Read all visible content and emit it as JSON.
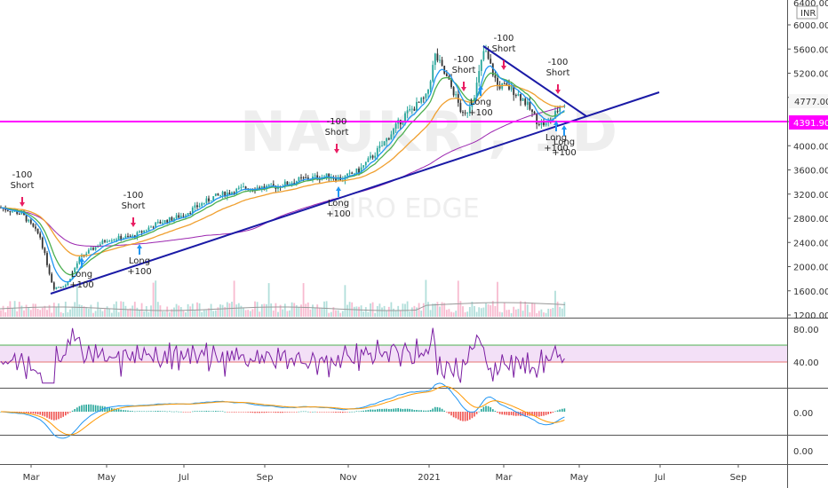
{
  "chart_data": {
    "type": "candlestick",
    "symbol_watermark": "NAUKRI, 1D",
    "watermark_sub": "HIRO EDGE",
    "currency": "INR",
    "price_ticks": [
      1200,
      1600,
      2000,
      2400,
      2800,
      3200,
      3600,
      4000,
      4400,
      4800,
      5200,
      5600,
      6000
    ],
    "price_tick_labels": [
      "1200.00",
      "1600.00",
      "2000.00",
      "2400.00",
      "2800.00",
      "3200.00",
      "3600.00",
      "4000.00",
      "",
      "",
      "5200.00",
      "5600.00",
      "6000.00"
    ],
    "top_label": "6400.00",
    "price_range": [
      1150,
      6450
    ],
    "current_price_label": "4777.00",
    "current_price": 4777,
    "horizontal_level_label": "4391.90",
    "horizontal_level": 4391.9,
    "time_labels": [
      "Mar",
      "May",
      "Jul",
      "Sep",
      "Nov",
      "2021",
      "Mar",
      "May",
      "Jul",
      "Sep"
    ],
    "rsi": {
      "ticks": [
        40,
        80
      ],
      "tick_labels": [
        "40.00",
        "80.00"
      ],
      "band": [
        40,
        60
      ],
      "range": [
        20,
        95
      ]
    },
    "macd": {
      "tick_labels": [
        "0.00",
        "0.00"
      ]
    },
    "annotations": [
      {
        "lines": [
          "-100",
          "Short"
        ],
        "arrow": "down"
      },
      {
        "lines": [
          "Long",
          "+100"
        ],
        "arrow": "up"
      },
      {
        "lines": [
          "-100",
          "Short"
        ],
        "arrow": "down"
      },
      {
        "lines": [
          "Long",
          "+100"
        ],
        "arrow": "up"
      },
      {
        "lines": [
          "-100",
          "Short"
        ],
        "arrow": "down"
      },
      {
        "lines": [
          "Long",
          "+100"
        ],
        "arrow": "up"
      },
      {
        "lines": [
          "-100",
          "Short"
        ],
        "arrow": "down"
      },
      {
        "lines": [
          "Long",
          "+100"
        ],
        "arrow": "up"
      },
      {
        "lines": [
          "-100",
          "Short"
        ],
        "arrow": "down"
      },
      {
        "lines": [
          "-100",
          "Short"
        ],
        "arrow": "down"
      },
      {
        "lines": [
          "Long",
          "+100"
        ],
        "arrow": "up"
      },
      {
        "lines": [
          "Long",
          "+100"
        ],
        "arrow": "up"
      }
    ],
    "colors": {
      "up": "#26a69a",
      "down": "#333333",
      "trendline": "#1a1aa6",
      "level": "#ff00ff",
      "ema_fast": "#2196f3",
      "ema_mid": "#4caf50",
      "ema_slow": "#f0a030",
      "sma_long": "#9c27b0",
      "rsi": "#7b1fa2",
      "rsi_band": "#f3e0f7",
      "arrow_down": "#e91e63",
      "arrow_up": "#2196f3"
    }
  }
}
